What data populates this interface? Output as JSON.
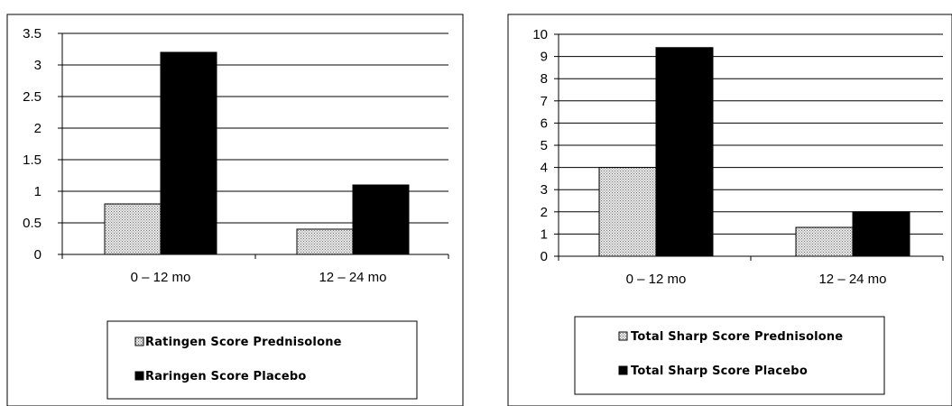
{
  "chart_data": [
    {
      "type": "bar",
      "categories": [
        "0 – 12 mo",
        "12 – 24 mo"
      ],
      "series": [
        {
          "name": "Ratingen Score Prednisolone",
          "values": [
            0.8,
            0.4
          ],
          "pattern": "dotted"
        },
        {
          "name": "Raringen Score Placebo",
          "values": [
            3.2,
            1.1
          ],
          "pattern": "solid"
        }
      ],
      "ylim": [
        0,
        3.5
      ],
      "yticks": [
        "0",
        "0.5",
        "1",
        "1.5",
        "2",
        "2.5",
        "3",
        "3.5"
      ],
      "grid": true,
      "legend": "bottom"
    },
    {
      "type": "bar",
      "categories": [
        "0 – 12 mo",
        "12 – 24 mo"
      ],
      "series": [
        {
          "name": "Total Sharp Score Prednisolone",
          "values": [
            4.0,
            1.3
          ],
          "pattern": "dotted"
        },
        {
          "name": "Total Sharp Score Placebo",
          "values": [
            9.4,
            2.0
          ],
          "pattern": "solid"
        }
      ],
      "ylim": [
        0,
        10
      ],
      "yticks": [
        "0",
        "1",
        "2",
        "3",
        "4",
        "5",
        "6",
        "7",
        "8",
        "9",
        "10"
      ],
      "grid": true,
      "legend": "bottom"
    }
  ],
  "colors": {
    "solid": "#000000",
    "dotted_fill": "#e6e6e6",
    "dot": "#7a7a7a"
  }
}
